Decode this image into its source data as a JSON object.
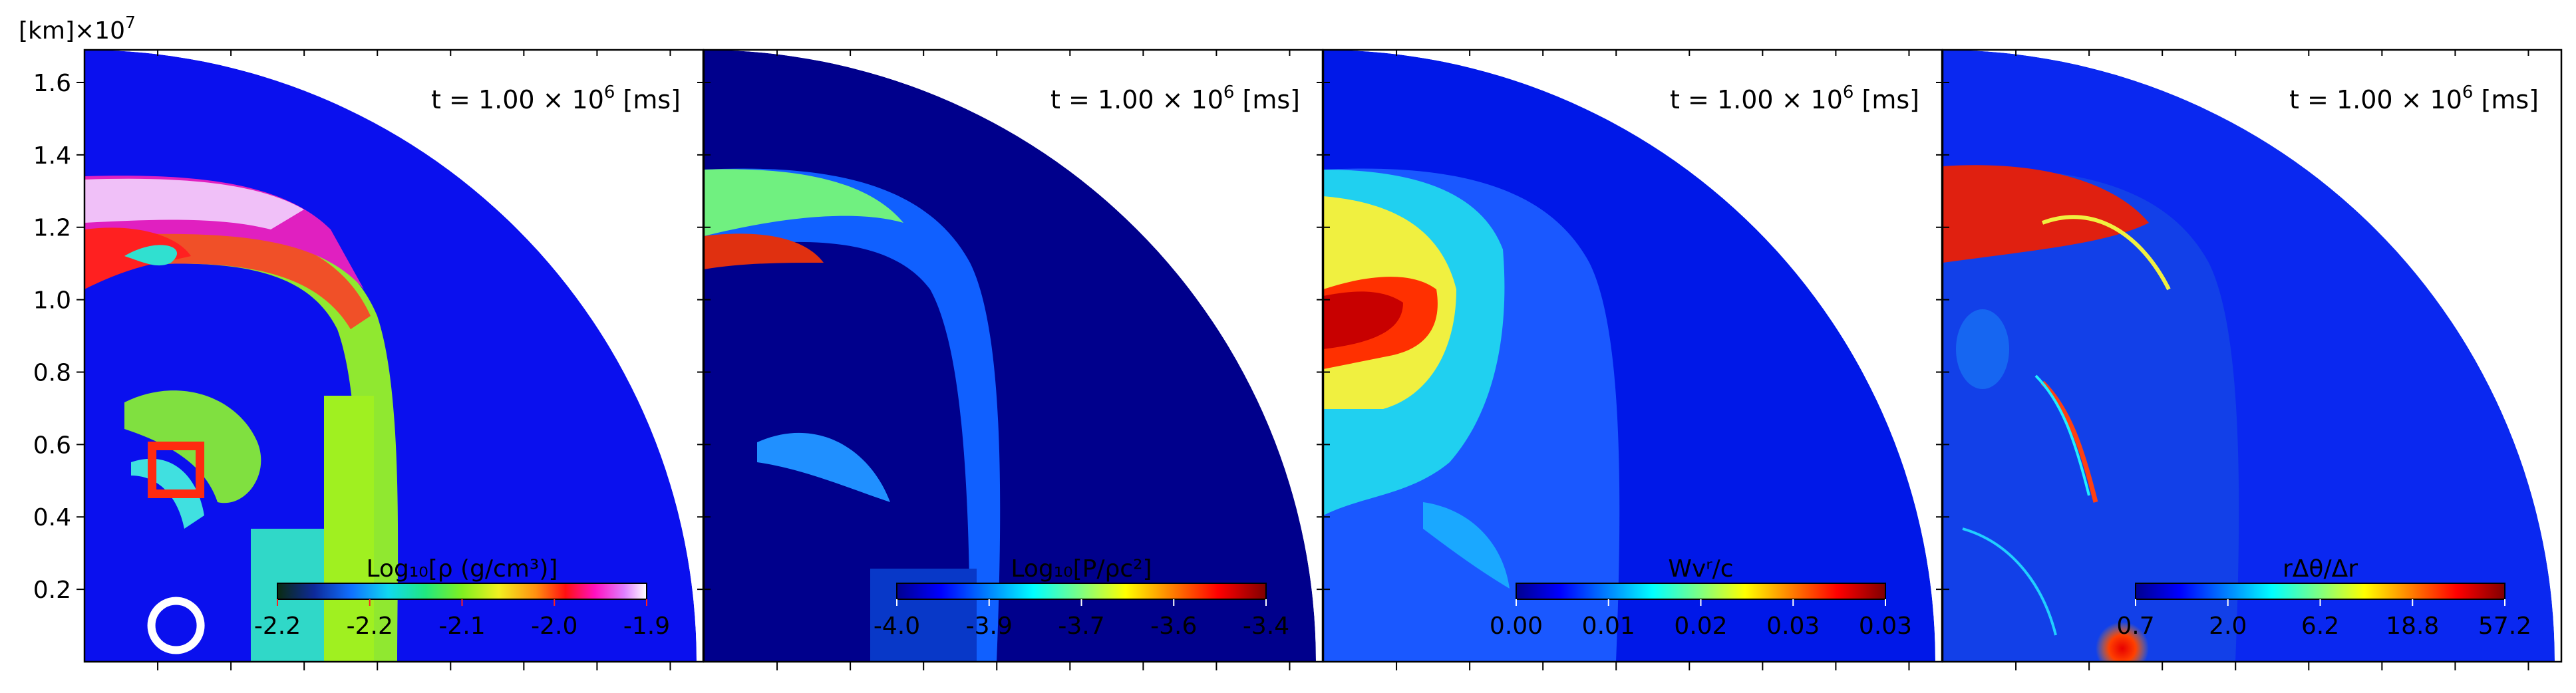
{
  "chart_data": {
    "type": "heatmap",
    "y_axis": {
      "unit_label": "[km]",
      "scale_label": "×10",
      "scale_exponent": "7",
      "ticks": [
        "0.2",
        "0.4",
        "0.6",
        "0.8",
        "1.0",
        "1.2",
        "1.4",
        "1.6"
      ],
      "tick_values": [
        0.2,
        0.4,
        0.6,
        0.8,
        1.0,
        1.2,
        1.4,
        1.6
      ],
      "ylim": [
        0.0,
        1.69
      ]
    },
    "x_axis": {
      "xlim": [
        0.0,
        1.69
      ],
      "tick_labels_shown": false
    },
    "panels": [
      {
        "time_prefix": "t = 1.00 × 10",
        "time_exp": "6",
        "time_unit": " [ms]",
        "colorbar_label": "Log₁₀[ρ (g/cm³)]",
        "label_color": "#ff2020",
        "colorbar_ticks": [
          "-2.2",
          "-2.2",
          "-2.1",
          "-2.0",
          "-1.9"
        ],
        "colormap": "gist_ncar",
        "markers": [
          {
            "shape": "square",
            "center": [
              0.25,
              0.53
            ],
            "color": "#ff2a10"
          },
          {
            "shape": "circle",
            "center": [
              0.25,
              0.1
            ],
            "color": "#ffffff"
          }
        ]
      },
      {
        "time_prefix": "t = 1.00 × 10",
        "time_exp": "6",
        "time_unit": " [ms]",
        "colorbar_label": "Log₁₀[P/ρc²]",
        "label_color": "#ffffff",
        "colorbar_ticks": [
          "-4.0",
          "-3.9",
          "-3.7",
          "-3.6",
          "-3.4"
        ],
        "colormap": "jet"
      },
      {
        "time_prefix": "t = 1.00 × 10",
        "time_exp": "6",
        "time_unit": " [ms]",
        "colorbar_label": "Wvʳ/c",
        "label_color": "#ffffff",
        "colorbar_ticks": [
          "0.00",
          "0.01",
          "0.02",
          "0.03",
          "0.03"
        ],
        "colormap": "jet"
      },
      {
        "time_prefix": "t = 1.00 × 10",
        "time_exp": "6",
        "time_unit": " [ms]",
        "colorbar_label": "rΔθ/Δr",
        "label_color": "#ffffff",
        "colorbar_ticks": [
          "0.7",
          "2.0",
          "6.2",
          "18.8",
          "57.2"
        ],
        "colormap": "jet"
      }
    ]
  }
}
